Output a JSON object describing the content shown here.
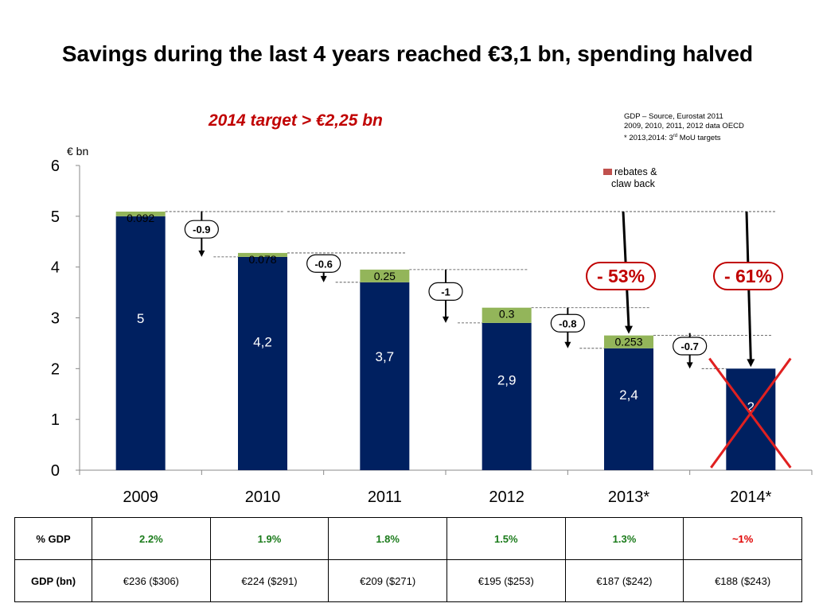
{
  "title": "Savings during the last 4 years reached €3,1 bn, spending halved",
  "subtitle": "2014 target > €2,25 bn",
  "source_note": {
    "line1": "GDP – Source, Eurostat 2011",
    "line2": "2009, 2010, 2011, 2012  data  OECD",
    "line3_pre": "* 2013,2014: 3",
    "line3_sup": "rd",
    "line3_post": " MoU targets"
  },
  "colors": {
    "spending": "#002060",
    "rebates": "#93b55a",
    "cross": "#e02020",
    "pct": "#c00000"
  },
  "chart_data": {
    "type": "bar",
    "ylabel": "€ bn",
    "ylim": [
      0,
      6
    ],
    "yticks": [
      "0",
      "1",
      "2",
      "3",
      "4",
      "5",
      "6"
    ],
    "categories": [
      "2009",
      "2010",
      "2011",
      "2012",
      "2013*",
      "2014*"
    ],
    "series": [
      {
        "name": "",
        "values": [
          5,
          4.2,
          3.7,
          2.9,
          2.4,
          2
        ]
      },
      {
        "name": "rebates & claw back",
        "values": [
          0.092,
          0.078,
          0.25,
          0.3,
          0.253,
          null
        ]
      }
    ],
    "value_labels": [
      "5",
      "4,2",
      "3,7",
      "2,9",
      "2,4",
      "2"
    ],
    "rebate_labels": [
      "0.092",
      "0.078",
      "0.25",
      "0.3",
      "0.253",
      ""
    ],
    "legend_lines": [
      "rebates &",
      "claw back"
    ],
    "steps": [
      {
        "label": "-0.9",
        "from": 5.1,
        "to": 4.2
      },
      {
        "label": "-0.6",
        "from": 4.25,
        "to": 3.7
      },
      {
        "label": "-1",
        "from": 3.95,
        "to": 2.9
      },
      {
        "label": "-0.8",
        "from": 3.2,
        "to": 2.4
      },
      {
        "label": "-0.7",
        "from": 2.7,
        "to": 2.0
      }
    ],
    "reductions": [
      "- 53%",
      "- 61%"
    ]
  },
  "table": {
    "rows": [
      {
        "label": "% GDP",
        "cells": [
          "2.2%",
          "1.9%",
          "1.8%",
          "1.5%",
          "1.3%",
          "~1%"
        ]
      },
      {
        "label": "GDP (bn)",
        "cells": [
          "€236 ($306)",
          "€224 ($291)",
          "€209 ($271)",
          "€195 ($253)",
          "€187 ($242)",
          "€188 ($243)"
        ]
      }
    ]
  }
}
